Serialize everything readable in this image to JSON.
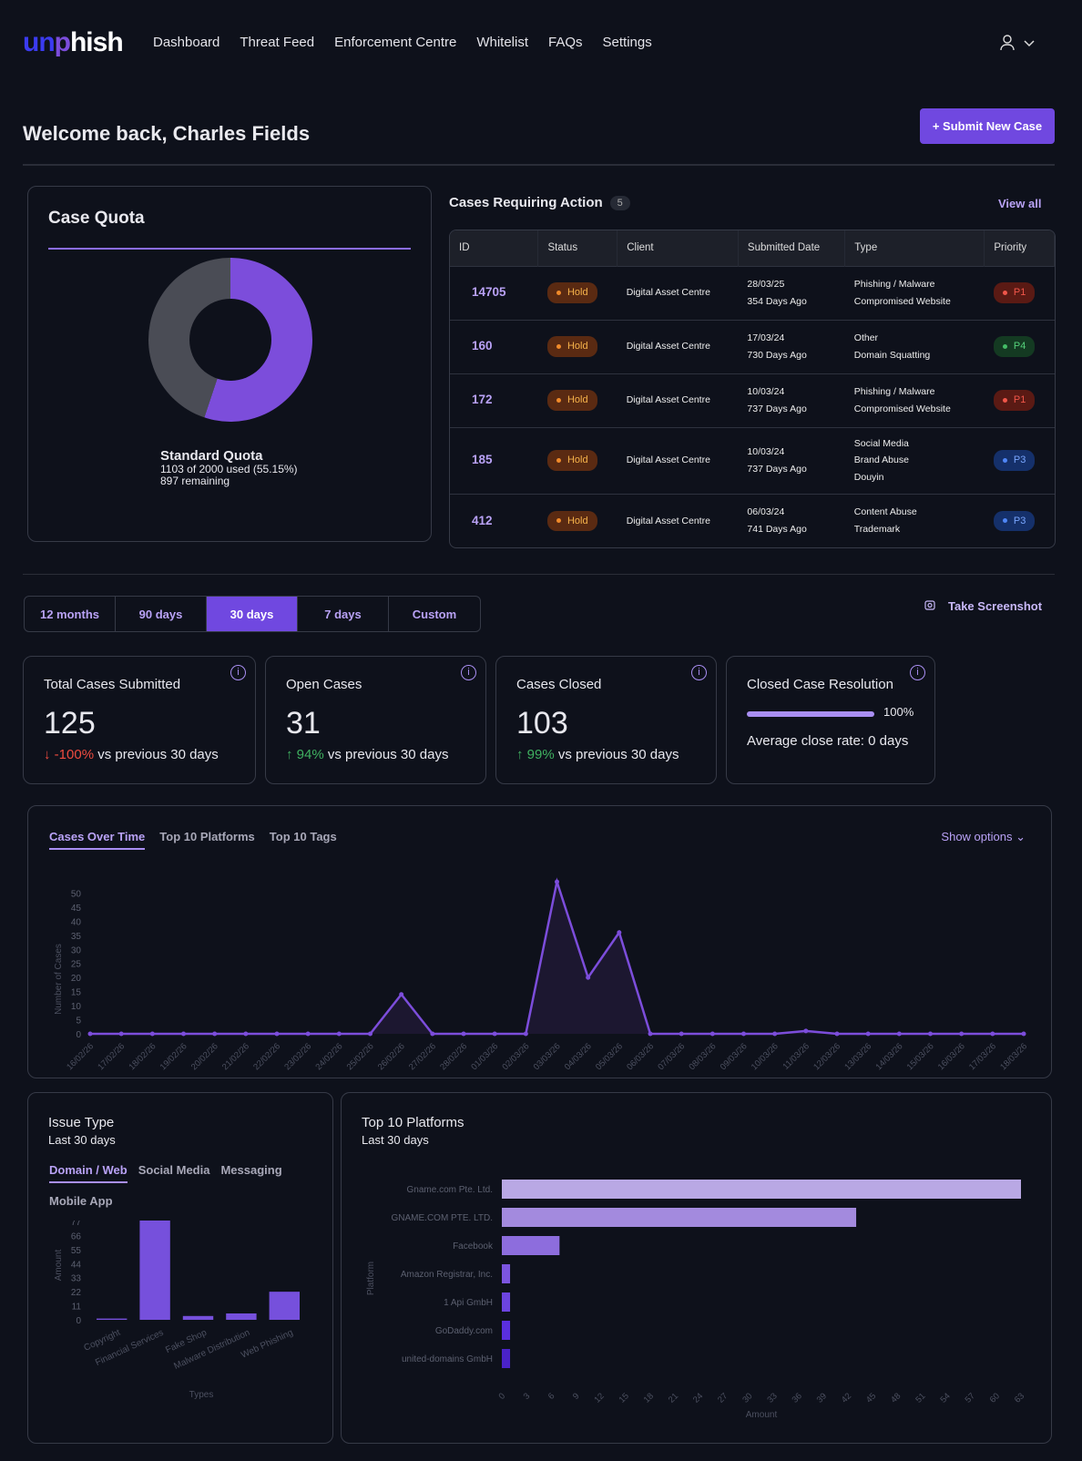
{
  "logo": {
    "p1": "un",
    "p2": "p",
    "p3": "hish"
  },
  "nav": [
    "Dashboard",
    "Threat Feed",
    "Enforcement Centre",
    "Whitelist",
    "FAQs",
    "Settings"
  ],
  "user_menu": {
    "icon": "user-icon",
    "chevron": "⌄"
  },
  "welcome": "Welcome back, Charles Fields",
  "submit_label": "+ Submit New Case",
  "quota": {
    "title": "Case Quota",
    "name": "Standard Quota",
    "used_text": "1103 of 2000 used (55.15%)",
    "remaining": "897 remaining",
    "used_percent": 55.15,
    "colors": {
      "used": "#7c4ddb",
      "remaining": "#4a4c55"
    }
  },
  "cases": {
    "title": "Cases Requiring Action",
    "count": "5",
    "view_all": "View all",
    "columns": [
      "ID",
      "Status",
      "Client",
      "Submitted Date",
      "Type",
      "Priority"
    ],
    "rows": [
      {
        "id": "14705",
        "status": "Hold",
        "client": "Digital Asset Centre",
        "date": "28/03/25",
        "ago": "354 Days Ago",
        "type": [
          "Phishing / Malware",
          "Compromised Website"
        ],
        "priority": "P1"
      },
      {
        "id": "160",
        "status": "Hold",
        "client": "Digital Asset Centre",
        "date": "17/03/24",
        "ago": "730 Days Ago",
        "type": [
          "Other",
          "Domain Squatting"
        ],
        "priority": "P4"
      },
      {
        "id": "172",
        "status": "Hold",
        "client": "Digital Asset Centre",
        "date": "10/03/24",
        "ago": "737 Days Ago",
        "type": [
          "Phishing / Malware",
          "Compromised Website"
        ],
        "priority": "P1"
      },
      {
        "id": "185",
        "status": "Hold",
        "client": "Digital Asset Centre",
        "date": "10/03/24",
        "ago": "737 Days Ago",
        "type": [
          "Social Media",
          "Brand Abuse",
          "Douyin"
        ],
        "priority": "P3"
      },
      {
        "id": "412",
        "status": "Hold",
        "client": "Digital Asset Centre",
        "date": "06/03/24",
        "ago": "741 Days Ago",
        "type": [
          "Content Abuse",
          "Trademark"
        ],
        "priority": "P3"
      }
    ]
  },
  "periods": [
    "12 months",
    "90 days",
    "30 days",
    "7 days",
    "Custom"
  ],
  "active_period": "30 days",
  "screenshot_label": "Take Screenshot",
  "stats": [
    {
      "title": "Total Cases Submitted",
      "value": "125",
      "delta": "-100%",
      "dir": "down",
      "suffix": "vs previous 30 days"
    },
    {
      "title": "Open Cases",
      "value": "31",
      "delta": "94%",
      "dir": "up",
      "suffix": "vs previous 30 days"
    },
    {
      "title": "Cases Closed",
      "value": "103",
      "delta": "99%",
      "dir": "up",
      "suffix": "vs previous 30 days"
    }
  ],
  "resolution": {
    "title": "Closed Case Resolution",
    "percent": 100,
    "percent_label": "100%",
    "avg": "Average close rate: 0 days"
  },
  "chart_tabs": [
    "Cases Over Time",
    "Top 10 Platforms",
    "Top 10 Tags"
  ],
  "show_options": "Show options",
  "chart_data": [
    {
      "type": "area",
      "ylabel": "Number of Cases",
      "ylim": [
        0,
        55
      ],
      "yticks": [
        0,
        5,
        10,
        15,
        20,
        25,
        30,
        35,
        40,
        45,
        50
      ],
      "x": [
        "16/02/26",
        "17/02/26",
        "18/02/26",
        "19/02/26",
        "20/02/26",
        "21/02/26",
        "22/02/26",
        "23/02/26",
        "24/02/26",
        "25/02/26",
        "26/02/26",
        "27/02/26",
        "28/02/26",
        "01/03/26",
        "02/03/26",
        "03/03/26",
        "04/03/26",
        "05/03/26",
        "06/03/26",
        "07/03/26",
        "08/03/26",
        "09/03/26",
        "10/03/26",
        "11/03/26",
        "12/03/26",
        "13/03/26",
        "14/03/26",
        "15/03/26",
        "16/03/26",
        "17/03/26",
        "18/03/26"
      ],
      "values": [
        0,
        0,
        0,
        0,
        0,
        0,
        0,
        0,
        0,
        0,
        14,
        0,
        0,
        0,
        0,
        54,
        20,
        36,
        0,
        0,
        0,
        0,
        0,
        1,
        0,
        0,
        0,
        0,
        0,
        0,
        0
      ],
      "color": "#7c4ddb"
    },
    {
      "type": "bar",
      "title": "Issue Type",
      "subtitle": "Last 30 days",
      "tabs": [
        "Domain / Web",
        "Social Media",
        "Messaging",
        "Mobile App"
      ],
      "xlabel": "Types",
      "ylabel": "Amount",
      "yticks": [
        0,
        11,
        22,
        33,
        44,
        55,
        66,
        77
      ],
      "ylim": [
        0,
        82
      ],
      "categories": [
        "Copyright",
        "Financial Services",
        "Fake Shop",
        "Malware Distribution",
        "Web Phishing"
      ],
      "values": [
        1,
        82,
        3,
        5,
        22
      ],
      "color": "#7650dc"
    },
    {
      "type": "bar",
      "orientation": "horizontal",
      "title": "Top 10 Platforms",
      "subtitle": "Last 30 days",
      "xlabel": "Amount",
      "ylabel": "Platform",
      "xlim": [
        0,
        63
      ],
      "xticks": [
        0,
        3,
        6,
        9,
        12,
        15,
        18,
        21,
        24,
        27,
        30,
        33,
        36,
        39,
        42,
        45,
        48,
        51,
        54,
        57,
        60,
        63
      ],
      "categories": [
        "Gname.com Pte. Ltd.",
        "GNAME.COM PTE. LTD.",
        "Facebook",
        "Amazon Registrar, Inc.",
        "1 Api GmbH",
        "GoDaddy.com",
        "united-domains GmbH"
      ],
      "values": [
        63,
        43,
        7,
        1,
        1,
        1,
        1
      ],
      "colors": [
        "#b9a8e4",
        "#a38ade",
        "#8d6ddd",
        "#7c55e0",
        "#6c44e0",
        "#5a2fe0",
        "#4a22c8"
      ]
    }
  ]
}
